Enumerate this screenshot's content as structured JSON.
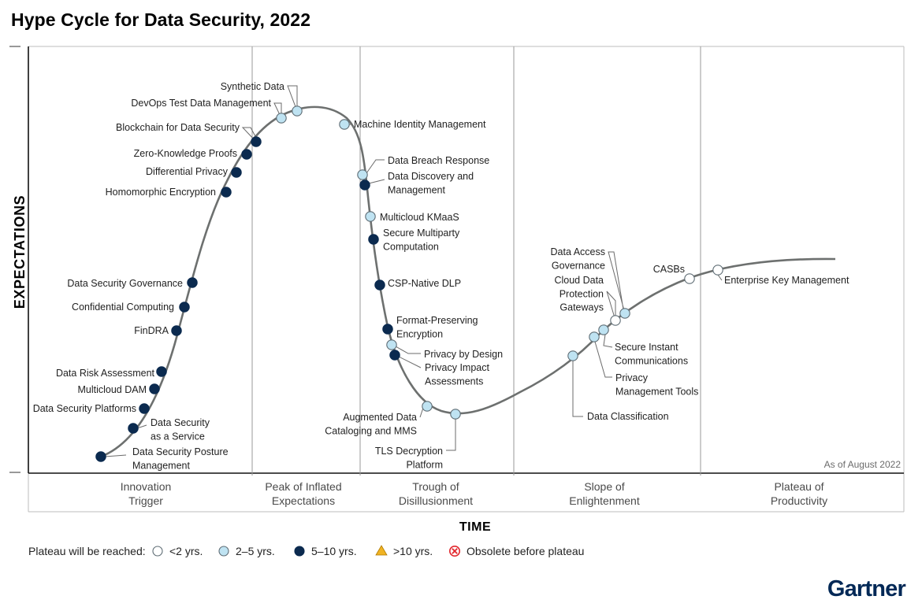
{
  "title": "Hype Cycle for Data Security, 2022",
  "y_axis_label": "EXPECTATIONS",
  "x_axis_label": "TIME",
  "as_of": "As of August 2022",
  "brand": "Gartner",
  "colors": {
    "lt2": "#ffffff",
    "y2to5": "#bfe3f2",
    "y5to10": "#0b2a4f",
    "gt10": "#f0b323",
    "obsolete": "#e2262c",
    "curve": "#6d706f",
    "grid": "#9a9a9a"
  },
  "phases": [
    {
      "id": "innovation-trigger",
      "lines": [
        "Innovation",
        "Trigger"
      ]
    },
    {
      "id": "peak-of-inflated-expectations",
      "lines": [
        "Peak of Inflated",
        "Expectations"
      ]
    },
    {
      "id": "trough-of-disillusionment",
      "lines": [
        "Trough of",
        "Disillusionment"
      ]
    },
    {
      "id": "slope-of-enlightenment",
      "lines": [
        "Slope of",
        "Enlightenment"
      ]
    },
    {
      "id": "plateau-of-productivity",
      "lines": [
        "Plateau of",
        "Productivity"
      ]
    }
  ],
  "legend": {
    "prefix": "Plateau will be reached:",
    "items": [
      {
        "key": "lt2",
        "label": "<2 yrs.",
        "icon": "circle"
      },
      {
        "key": "y2to5",
        "label": "2–5 yrs.",
        "icon": "circle"
      },
      {
        "key": "y5to10",
        "label": "5–10 yrs.",
        "icon": "circle"
      },
      {
        "key": "gt10",
        "label": ">10 yrs.",
        "icon": "triangle"
      },
      {
        "key": "obsolete",
        "label": "Obsolete before plateau",
        "icon": "x-circle"
      }
    ]
  },
  "technologies": [
    {
      "name": [
        "Data Security Posture",
        "Management"
      ],
      "plateau": "y5to10"
    },
    {
      "name": [
        "Data Security",
        "as a Service"
      ],
      "plateau": "y5to10"
    },
    {
      "name": [
        "Data Security Platforms"
      ],
      "plateau": "y5to10"
    },
    {
      "name": [
        "Multicloud DAM"
      ],
      "plateau": "y5to10"
    },
    {
      "name": [
        "Data Risk Assessment"
      ],
      "plateau": "y5to10"
    },
    {
      "name": [
        "FinDRA"
      ],
      "plateau": "y5to10"
    },
    {
      "name": [
        "Confidential Computing"
      ],
      "plateau": "y5to10"
    },
    {
      "name": [
        "Data Security Governance"
      ],
      "plateau": "y5to10"
    },
    {
      "name": [
        "Homomorphic Encryption"
      ],
      "plateau": "y5to10"
    },
    {
      "name": [
        "Differential Privacy"
      ],
      "plateau": "y5to10"
    },
    {
      "name": [
        "Zero-Knowledge Proofs"
      ],
      "plateau": "y5to10"
    },
    {
      "name": [
        "Blockchain for Data Security"
      ],
      "plateau": "y5to10"
    },
    {
      "name": [
        "DevOps Test Data Management"
      ],
      "plateau": "y2to5"
    },
    {
      "name": [
        "Synthetic Data"
      ],
      "plateau": "y2to5"
    },
    {
      "name": [
        "Machine Identity Management"
      ],
      "plateau": "y2to5"
    },
    {
      "name": [
        "Data Breach Response"
      ],
      "plateau": "y2to5"
    },
    {
      "name": [
        "Data Discovery and",
        "Management"
      ],
      "plateau": "y5to10"
    },
    {
      "name": [
        "Multicloud KMaaS"
      ],
      "plateau": "y2to5"
    },
    {
      "name": [
        "Secure Multiparty",
        "Computation"
      ],
      "plateau": "y5to10"
    },
    {
      "name": [
        "CSP-Native DLP"
      ],
      "plateau": "y5to10"
    },
    {
      "name": [
        "Format-Preserving",
        "Encryption"
      ],
      "plateau": "y5to10"
    },
    {
      "name": [
        "Privacy by Design"
      ],
      "plateau": "y2to5"
    },
    {
      "name": [
        "Privacy Impact",
        "Assessments"
      ],
      "plateau": "y5to10"
    },
    {
      "name": [
        "Augmented Data",
        "Cataloging and MMS"
      ],
      "plateau": "y2to5"
    },
    {
      "name": [
        "TLS Decryption",
        "Platform"
      ],
      "plateau": "y2to5"
    },
    {
      "name": [
        "Data Classification"
      ],
      "plateau": "y2to5"
    },
    {
      "name": [
        "Privacy",
        "Management Tools"
      ],
      "plateau": "y2to5"
    },
    {
      "name": [
        "Secure Instant",
        "Communications"
      ],
      "plateau": "y2to5"
    },
    {
      "name": [
        "Cloud Data",
        "Protection",
        "Gateways"
      ],
      "plateau": "lt2"
    },
    {
      "name": [
        "Data Access",
        "Governance"
      ],
      "plateau": "y2to5"
    },
    {
      "name": [
        "CASBs"
      ],
      "plateau": "lt2"
    },
    {
      "name": [
        "Enterprise Key Management"
      ],
      "plateau": "lt2"
    }
  ]
}
